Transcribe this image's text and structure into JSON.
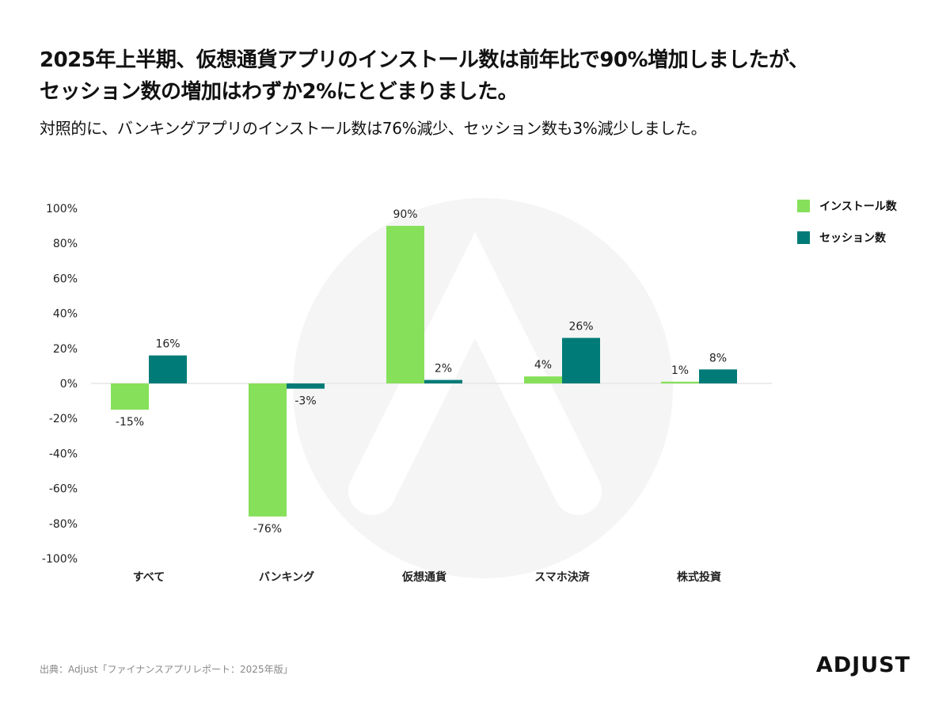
{
  "title_line1": "2025年上半期、仮想通貨アプリのインストール数は前年比で90%増加しましたが、",
  "title_line2": "セッション数の増加はわずか2%にとどまりました。",
  "subtitle": "対照的に、バンキングアプリのインストール数は76%減少、セッション数も3%減少しました。",
  "source": "出典：Adjust「ファイナンスアプリレポート：2025年版」",
  "logo": "ADJUST",
  "colors": {
    "install": "#86e05a",
    "session": "#007b77"
  },
  "chart_data": {
    "type": "bar",
    "categories": [
      "すべて",
      "バンキング",
      "仮想通貨",
      "スマホ決済",
      "株式投資"
    ],
    "series": [
      {
        "name": "インストール数",
        "values": [
          -15,
          -76,
          90,
          4,
          1
        ]
      },
      {
        "name": "セッション数",
        "values": [
          16,
          -3,
          2,
          26,
          8
        ]
      }
    ],
    "data_labels": [
      [
        "-15%",
        "-76%",
        "90%",
        "4%",
        "1%"
      ],
      [
        "16%",
        "-3%",
        "2%",
        "26%",
        "8%"
      ]
    ],
    "ylim": [
      -100,
      100
    ],
    "yticks": [
      "100%",
      "80%",
      "60%",
      "40%",
      "20%",
      "0%",
      "-20%",
      "-40%",
      "-60%",
      "-80%",
      "-100%"
    ],
    "grid": false,
    "legend": "top-right"
  }
}
